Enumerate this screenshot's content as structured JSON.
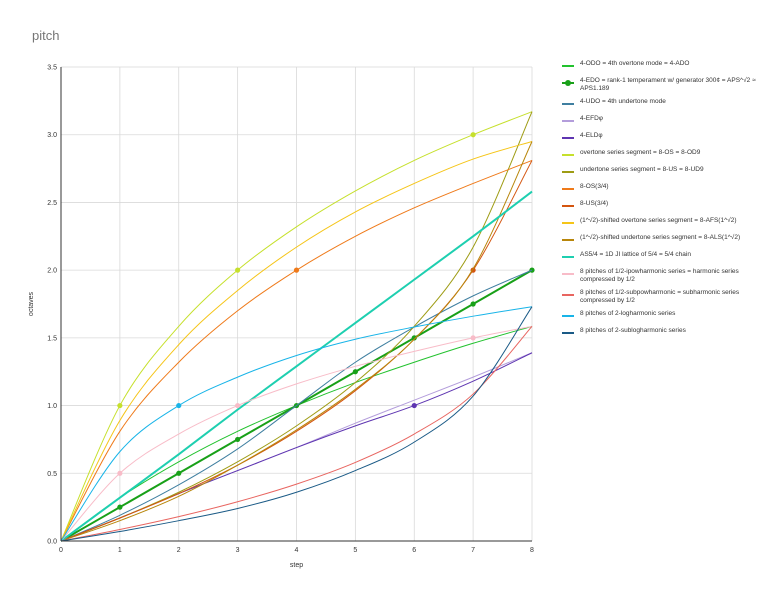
{
  "chart_data": {
    "type": "line",
    "title": "pitch",
    "xlabel": "step",
    "ylabel": "octaves",
    "xlim": [
      0,
      8
    ],
    "ylim": [
      0,
      3.5
    ],
    "xticks": [
      "0",
      "1",
      "2",
      "3",
      "4",
      "5",
      "6",
      "7",
      "8"
    ],
    "yticks": [
      "0.0",
      "0.5",
      "1.0",
      "1.5",
      "2.0",
      "2.5",
      "3.0",
      "3.5"
    ],
    "grid": true,
    "legend_position": "right",
    "series": [
      {
        "name": "4-ODO = 4th overtone mode = 4-ADO",
        "color": "#22c22e",
        "width": 1,
        "x": [
          0,
          1,
          2,
          3,
          4,
          5,
          6,
          7,
          8
        ],
        "y": [
          0,
          0.32,
          0.585,
          0.81,
          1.0,
          1.17,
          1.32,
          1.46,
          1.585
        ]
      },
      {
        "name": "4-EDO = rank-1 temperament w/ generator 300¢ = APS^√2 ≈ APS1.189",
        "color": "#18a018",
        "width": 2,
        "x": [
          0,
          1,
          2,
          3,
          4,
          5,
          6,
          7,
          8
        ],
        "y": [
          0,
          0.25,
          0.5,
          0.75,
          1.0,
          1.25,
          1.5,
          1.75,
          2.0
        ],
        "markers": [
          1,
          2,
          3,
          4,
          5,
          6,
          7,
          8
        ]
      },
      {
        "name": "4-UDO = 4th undertone mode",
        "color": "#3f7fa0",
        "width": 1,
        "x": [
          0,
          1,
          2,
          3,
          4,
          5,
          6,
          7,
          8
        ],
        "y": [
          0,
          0.19,
          0.415,
          0.68,
          1.0,
          1.32,
          1.58,
          1.81,
          2.0
        ]
      },
      {
        "name": "4-EFDφ",
        "color": "#b39ddb",
        "width": 1,
        "x": [
          0,
          1,
          2,
          3,
          4,
          5,
          6,
          7,
          8
        ],
        "y": [
          0,
          0.17,
          0.35,
          0.52,
          0.69,
          0.87,
          1.04,
          1.21,
          1.39
        ]
      },
      {
        "name": "4-ELDφ",
        "color": "#5e35b1",
        "width": 1,
        "x": [
          0,
          1,
          2,
          3,
          4,
          5,
          6,
          7,
          8
        ],
        "y": [
          0,
          0.17,
          0.35,
          0.52,
          0.69,
          0.85,
          1.0,
          1.18,
          1.39
        ],
        "markers": [
          6
        ]
      },
      {
        "name": "overtone series segment = 8-OS = 8-OD9",
        "color": "#c6e02c",
        "width": 1,
        "x": [
          0,
          1,
          2,
          3,
          4,
          5,
          6,
          7,
          8
        ],
        "y": [
          0,
          1.0,
          1.585,
          2.0,
          2.32,
          2.585,
          2.81,
          3.0,
          3.17
        ],
        "markers": [
          1,
          3,
          7
        ]
      },
      {
        "name": "undertone series segment = 8-US = 8-UD9",
        "color": "#9e9c14",
        "width": 1,
        "x": [
          0,
          1,
          2,
          3,
          4,
          5,
          6,
          7,
          8
        ],
        "y": [
          0,
          0.17,
          0.36,
          0.585,
          0.85,
          1.17,
          1.585,
          2.17,
          3.17
        ]
      },
      {
        "name": "8-OS(3/4)",
        "color": "#ef7a1a",
        "width": 1,
        "x": [
          0,
          1,
          2,
          3,
          4,
          5,
          6,
          7,
          8
        ],
        "y": [
          0,
          0.81,
          1.32,
          1.7,
          2.0,
          2.25,
          2.46,
          2.64,
          2.81
        ],
        "markers": [
          4
        ]
      },
      {
        "name": "8-US(3/4)",
        "color": "#d4550f",
        "width": 1,
        "x": [
          0,
          1,
          2,
          3,
          4,
          5,
          6,
          7,
          8
        ],
        "y": [
          0,
          0.17,
          0.35,
          0.56,
          0.81,
          1.11,
          1.49,
          2.0,
          2.81
        ],
        "markers": [
          7
        ]
      },
      {
        "name": "(1^√2)-shifted overtone series segment = 8-AFS(1^√2)",
        "color": "#f5c518",
        "width": 1,
        "x": [
          0,
          1,
          2,
          3,
          4,
          5,
          6,
          7,
          8
        ],
        "y": [
          0,
          0.89,
          1.45,
          1.85,
          2.17,
          2.43,
          2.64,
          2.82,
          2.95
        ]
      },
      {
        "name": "(1^√2)-shifted undertone series segment = 8-ALS(1^√2)",
        "color": "#b8860b",
        "width": 1,
        "x": [
          0,
          1,
          2,
          3,
          4,
          5,
          6,
          7,
          8
        ],
        "y": [
          0,
          0.15,
          0.33,
          0.56,
          0.82,
          1.12,
          1.49,
          2.01,
          2.95
        ]
      },
      {
        "name": "AS5/4 = 1D JI lattice of 5/4 = 5/4 chain",
        "color": "#1ecfb0",
        "width": 2,
        "x": [
          0,
          1,
          2,
          3,
          4,
          5,
          6,
          7,
          8
        ],
        "y": [
          0,
          0.32,
          0.64,
          0.97,
          1.29,
          1.61,
          1.93,
          2.25,
          2.58
        ]
      },
      {
        "name": "8 pitches of 1/2-ipowharmonic series = harmonic series compressed by 1/2",
        "color": "#f8bcc8",
        "width": 1,
        "x": [
          0,
          1,
          2,
          3,
          4,
          5,
          6,
          7,
          8
        ],
        "y": [
          0,
          0.5,
          0.79,
          1.0,
          1.16,
          1.29,
          1.4,
          1.5,
          1.585
        ],
        "markers": [
          1,
          3,
          7
        ]
      },
      {
        "name": "8 pitches of 1/2-subpowharmonic = subharmonic series compressed by 1/2",
        "color": "#e86560",
        "width": 1,
        "x": [
          0,
          1,
          2,
          3,
          4,
          5,
          6,
          7,
          8
        ],
        "y": [
          0,
          0.085,
          0.18,
          0.29,
          0.42,
          0.58,
          0.79,
          1.085,
          1.585
        ]
      },
      {
        "name": "8 pitches of 2-logharmonic series",
        "color": "#18b4e8",
        "width": 1,
        "x": [
          0,
          1,
          2,
          3,
          4,
          5,
          6,
          7,
          8
        ],
        "y": [
          0,
          0.66,
          1.0,
          1.21,
          1.37,
          1.49,
          1.58,
          1.66,
          1.73
        ],
        "markers": [
          2
        ]
      },
      {
        "name": "8 pitches of 2-sublogharmonic series",
        "color": "#1a5a86",
        "width": 1,
        "x": [
          0,
          1,
          2,
          3,
          4,
          5,
          6,
          7,
          8
        ],
        "y": [
          0,
          0.07,
          0.15,
          0.24,
          0.36,
          0.52,
          0.73,
          1.07,
          1.73
        ]
      }
    ]
  }
}
